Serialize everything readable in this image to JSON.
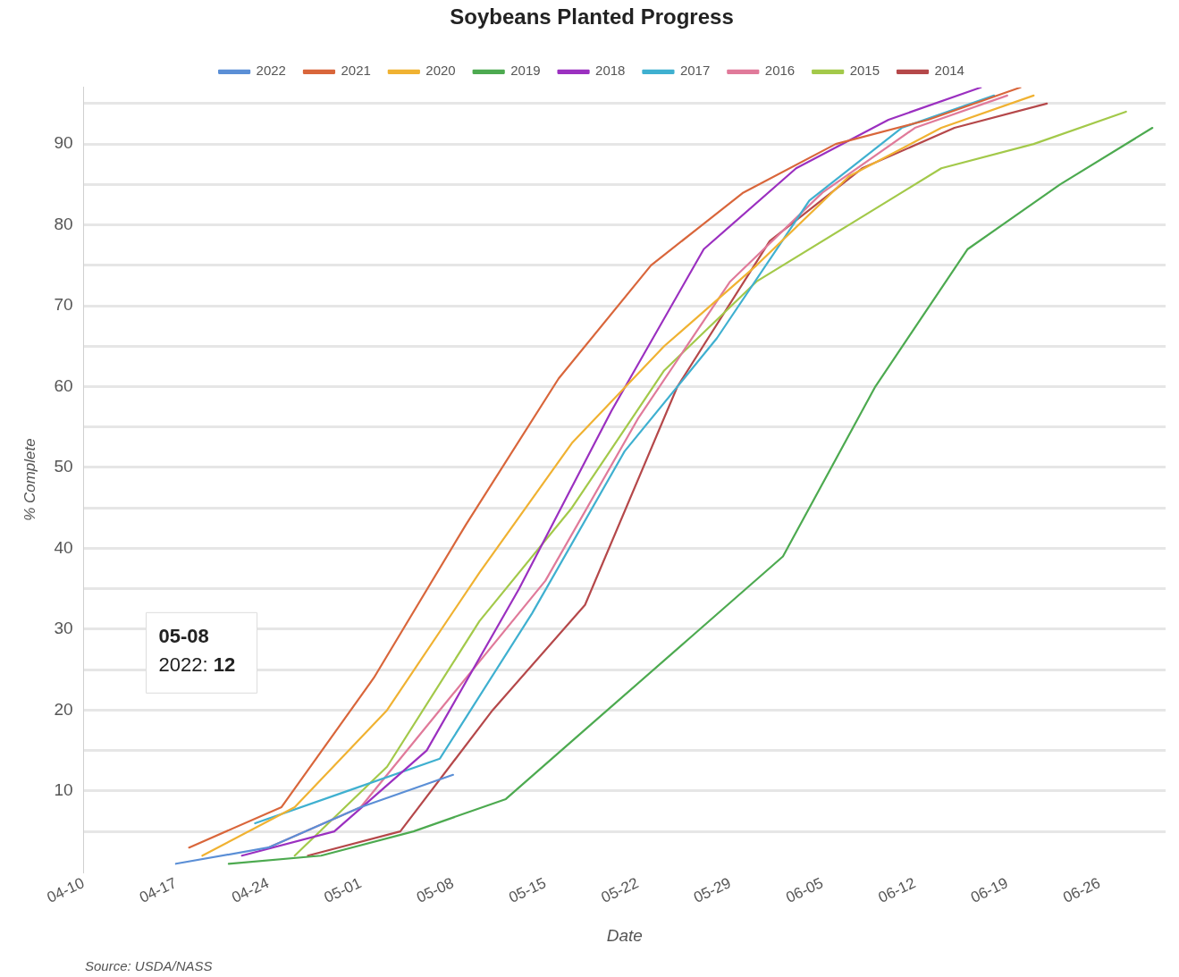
{
  "chart_data": {
    "type": "line",
    "title": "Soybeans Planted Progress",
    "xlabel": "Date",
    "ylabel": "% Complete",
    "xlim": [
      "--04-10",
      "--07-01"
    ],
    "xticks": [
      {
        "value": "--04-10",
        "label": "04-10"
      },
      {
        "value": "--04-17",
        "label": "04-17"
      },
      {
        "value": "--04-24",
        "label": "04-24"
      },
      {
        "value": "--05-01",
        "label": "05-01"
      },
      {
        "value": "--05-08",
        "label": "05-08"
      },
      {
        "value": "--05-15",
        "label": "05-15"
      },
      {
        "value": "--05-22",
        "label": "05-22"
      },
      {
        "value": "--05-29",
        "label": "05-29"
      },
      {
        "value": "--06-05",
        "label": "06-05"
      },
      {
        "value": "--06-12",
        "label": "06-12"
      },
      {
        "value": "--06-19",
        "label": "06-19"
      },
      {
        "value": "--06-26",
        "label": "06-26"
      }
    ],
    "ylim": [
      0,
      97
    ],
    "yticks": [
      {
        "value": 5,
        "label": null
      },
      10,
      {
        "value": 15,
        "label": null
      },
      20,
      {
        "value": 25,
        "label": null
      },
      30,
      {
        "value": 35,
        "label": null
      },
      40,
      {
        "value": 45,
        "label": null
      },
      50,
      {
        "value": 55,
        "label": null
      },
      60,
      {
        "value": 65,
        "label": null
      },
      70,
      {
        "value": 75,
        "label": null
      },
      80,
      {
        "value": 85,
        "label": null
      },
      90,
      {
        "value": 95,
        "label": null
      }
    ],
    "grid": "y",
    "legend": "top",
    "marker": "none",
    "line_style": "solid",
    "series": [
      {
        "name": "2022",
        "color": "#5b8fd6",
        "x": [
          "--04-17",
          "--04-24",
          "--05-01",
          "--05-08"
        ],
        "values": [
          1,
          3,
          8,
          12
        ]
      },
      {
        "name": "2021",
        "color": "#d9663b",
        "x": [
          "--04-18",
          "--04-25",
          "--05-02",
          "--05-09",
          "--05-16",
          "--05-23",
          "--05-30",
          "--06-06",
          "--06-13",
          "--06-20"
        ],
        "values": [
          3,
          8,
          24,
          43,
          61,
          75,
          84,
          90,
          93,
          97
        ]
      },
      {
        "name": "2020",
        "color": "#f0b232",
        "x": [
          "--04-19",
          "--04-26",
          "--05-03",
          "--05-10",
          "--05-17",
          "--05-24",
          "--05-31",
          "--06-07",
          "--06-14",
          "--06-21"
        ],
        "values": [
          2,
          8,
          20,
          37,
          53,
          65,
          75,
          86,
          92,
          96
        ]
      },
      {
        "name": "2019",
        "color": "#4daa50",
        "x": [
          "--04-21",
          "--04-28",
          "--05-05",
          "--05-12",
          "--05-19",
          "--05-26",
          "--06-02",
          "--06-09",
          "--06-16",
          "--06-23",
          "--06-30"
        ],
        "values": [
          1,
          2,
          5,
          9,
          19,
          29,
          39,
          60,
          77,
          85,
          92
        ]
      },
      {
        "name": "2018",
        "color": "#9b30c0",
        "x": [
          "--04-22",
          "--04-29",
          "--05-06",
          "--05-13",
          "--05-20",
          "--05-27",
          "--06-03",
          "--06-10",
          "--06-17"
        ],
        "values": [
          2,
          5,
          15,
          35,
          57,
          77,
          87,
          93,
          97
        ]
      },
      {
        "name": "2017",
        "color": "#3fb0d0",
        "x": [
          "--04-23",
          "--04-30",
          "--05-07",
          "--05-14",
          "--05-21",
          "--05-28",
          "--06-04",
          "--06-11",
          "--06-18"
        ],
        "values": [
          6,
          10,
          14,
          32,
          52,
          66,
          83,
          92,
          96
        ]
      },
      {
        "name": "2016",
        "color": "#e07a9a",
        "x": [
          "--04-24",
          "--05-01",
          "--05-08",
          "--05-15",
          "--05-22",
          "--05-29",
          "--06-05",
          "--06-12",
          "--06-19"
        ],
        "values": [
          3,
          8,
          22,
          36,
          56,
          73,
          84,
          92,
          96
        ]
      },
      {
        "name": "2015",
        "color": "#a3c94a",
        "x": [
          "--04-26",
          "--05-03",
          "--05-10",
          "--05-17",
          "--05-24",
          "--05-31",
          "--06-07",
          "--06-14",
          "--06-21",
          "--06-28"
        ],
        "values": [
          2,
          13,
          31,
          45,
          62,
          73,
          80,
          87,
          90,
          94
        ]
      },
      {
        "name": "2014",
        "color": "#b5484a",
        "x": [
          "--04-27",
          "--05-04",
          "--05-11",
          "--05-18",
          "--05-25",
          "--06-01",
          "--06-08",
          "--06-15",
          "--06-22"
        ],
        "values": [
          2,
          5,
          20,
          33,
          60,
          78,
          87,
          92,
          95
        ]
      }
    ],
    "annotations": [
      "05-08\n2022: 12",
      "Source: USDA/NASS"
    ]
  }
}
